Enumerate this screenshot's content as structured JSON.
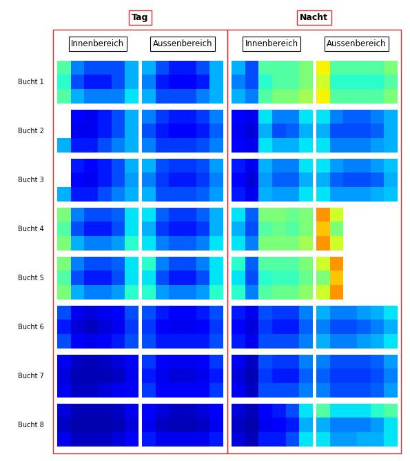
{
  "chart_data": {
    "type": "heatmap",
    "groups": [
      "Tag",
      "Nacht"
    ],
    "areas": [
      "Innenbereich",
      "Aussenbereich"
    ],
    "rows": [
      "Bucht 1",
      "Bucht 2",
      "Bucht 3",
      "Bucht 4",
      "Bucht 5",
      "Bucht 6",
      "Bucht 7",
      "Bucht 8"
    ],
    "color_range": [
      0,
      1
    ],
    "tick_labels": false,
    "cells": [
      [
        [
          [
            0.45,
            0.25,
            0.2,
            0.2,
            0.2,
            0.3
          ],
          [
            0.4,
            0.2,
            0.15,
            0.15,
            0.2,
            0.3
          ],
          [
            0.45,
            0.3,
            0.25,
            0.25,
            0.25,
            0.35
          ]
        ],
        [
          [
            0.3,
            0.2,
            0.15,
            0.15,
            0.2,
            0.3
          ],
          [
            0.25,
            0.15,
            0.12,
            0.12,
            0.15,
            0.3
          ],
          [
            0.3,
            0.2,
            0.2,
            0.2,
            0.25,
            0.3
          ]
        ],
        [
          [
            0.3,
            0.2,
            0.45,
            0.45,
            0.45,
            0.5
          ],
          [
            0.25,
            0.2,
            0.4,
            0.45,
            0.45,
            0.5
          ],
          [
            0.3,
            0.25,
            0.45,
            0.5,
            0.5,
            0.55
          ]
        ],
        [
          [
            0.65,
            0.45,
            0.45,
            0.45,
            0.45,
            0.5
          ],
          [
            0.6,
            0.4,
            0.4,
            0.4,
            0.4,
            0.45
          ],
          [
            0.65,
            0.45,
            0.45,
            0.45,
            0.45,
            0.5
          ]
        ]
      ],
      [
        [
          [
            null,
            0.12,
            0.1,
            0.15,
            0.2,
            0.3
          ],
          [
            null,
            0.1,
            0.1,
            0.15,
            0.2,
            0.3
          ],
          [
            0.3,
            0.15,
            0.15,
            0.2,
            0.25,
            0.3
          ]
        ],
        [
          [
            0.25,
            0.18,
            0.15,
            0.15,
            0.18,
            0.25
          ],
          [
            0.2,
            0.15,
            0.12,
            0.12,
            0.15,
            0.22
          ],
          [
            0.25,
            0.18,
            0.18,
            0.18,
            0.2,
            0.25
          ]
        ],
        [
          [
            0.12,
            0.1,
            0.35,
            0.25,
            0.25,
            0.35
          ],
          [
            0.1,
            0.08,
            0.3,
            0.2,
            0.22,
            0.3
          ],
          [
            0.12,
            0.1,
            0.35,
            0.3,
            0.3,
            0.35
          ]
        ],
        [
          [
            0.35,
            0.25,
            0.22,
            0.22,
            0.25,
            0.3
          ],
          [
            0.3,
            0.2,
            0.2,
            0.2,
            0.22,
            0.3
          ],
          [
            0.35,
            0.25,
            0.25,
            0.25,
            0.28,
            0.3
          ]
        ]
      ],
      [
        [
          [
            null,
            0.15,
            0.12,
            0.15,
            0.2,
            0.3
          ],
          [
            null,
            0.12,
            0.1,
            0.15,
            0.2,
            0.28
          ],
          [
            0.3,
            0.15,
            0.15,
            0.2,
            0.25,
            0.3
          ]
        ],
        [
          [
            0.3,
            0.2,
            0.18,
            0.18,
            0.2,
            0.28
          ],
          [
            0.25,
            0.18,
            0.15,
            0.15,
            0.18,
            0.25
          ],
          [
            0.3,
            0.2,
            0.2,
            0.2,
            0.22,
            0.28
          ]
        ],
        [
          [
            0.15,
            0.1,
            0.3,
            0.25,
            0.25,
            0.35
          ],
          [
            0.12,
            0.08,
            0.28,
            0.22,
            0.22,
            0.3
          ],
          [
            0.15,
            0.1,
            0.3,
            0.28,
            0.28,
            0.35
          ]
        ],
        [
          [
            0.35,
            0.28,
            0.25,
            0.25,
            0.28,
            0.32
          ],
          [
            0.3,
            0.22,
            0.2,
            0.2,
            0.22,
            0.3
          ],
          [
            0.35,
            0.28,
            0.28,
            0.28,
            0.3,
            0.32
          ]
        ]
      ],
      [
        [
          [
            0.5,
            0.25,
            0.2,
            0.2,
            0.22,
            0.35
          ],
          [
            0.45,
            0.2,
            0.15,
            0.15,
            0.2,
            0.35
          ],
          [
            0.5,
            0.3,
            0.25,
            0.25,
            0.28,
            0.4
          ]
        ],
        [
          [
            0.35,
            0.22,
            0.18,
            0.18,
            0.22,
            0.3
          ],
          [
            0.3,
            0.18,
            0.15,
            0.15,
            0.18,
            0.3
          ],
          [
            0.35,
            0.25,
            0.22,
            0.22,
            0.25,
            0.35
          ]
        ],
        [
          [
            0.35,
            0.22,
            0.5,
            0.5,
            0.48,
            0.5
          ],
          [
            0.3,
            0.2,
            0.45,
            0.48,
            0.45,
            0.5
          ],
          [
            0.35,
            0.25,
            0.5,
            0.5,
            0.5,
            0.55
          ]
        ],
        [
          [
            0.75,
            0.6,
            null,
            null,
            null,
            null
          ],
          [
            0.7,
            0.5,
            null,
            null,
            null,
            null
          ],
          [
            0.75,
            0.6,
            null,
            null,
            null,
            null
          ]
        ]
      ],
      [
        [
          [
            0.5,
            0.25,
            0.2,
            0.2,
            0.22,
            0.35
          ],
          [
            0.45,
            0.2,
            0.15,
            0.15,
            0.2,
            0.35
          ],
          [
            0.5,
            0.3,
            0.25,
            0.25,
            0.28,
            0.4
          ]
        ],
        [
          [
            0.4,
            0.25,
            0.2,
            0.2,
            0.25,
            0.35
          ],
          [
            0.35,
            0.2,
            0.15,
            0.15,
            0.2,
            0.35
          ],
          [
            0.4,
            0.28,
            0.25,
            0.25,
            0.28,
            0.4
          ]
        ],
        [
          [
            0.4,
            0.22,
            0.45,
            0.45,
            0.45,
            0.5
          ],
          [
            0.35,
            0.2,
            0.4,
            0.42,
            0.42,
            0.48
          ],
          [
            0.4,
            0.25,
            0.45,
            0.48,
            0.48,
            0.52
          ]
        ],
        [
          [
            0.6,
            0.75,
            null,
            null,
            null,
            null
          ],
          [
            0.5,
            0.7,
            null,
            null,
            null,
            null
          ],
          [
            0.6,
            0.75,
            null,
            null,
            null,
            null
          ]
        ]
      ],
      [
        [
          [
            0.2,
            0.1,
            0.08,
            0.1,
            0.12,
            0.2
          ],
          [
            0.15,
            0.08,
            0.06,
            0.08,
            0.1,
            0.18
          ],
          [
            0.2,
            0.12,
            0.1,
            0.12,
            0.15,
            0.2
          ]
        ],
        [
          [
            0.2,
            0.15,
            0.12,
            0.12,
            0.15,
            0.2
          ],
          [
            0.18,
            0.12,
            0.1,
            0.1,
            0.12,
            0.18
          ],
          [
            0.2,
            0.15,
            0.15,
            0.15,
            0.15,
            0.2
          ]
        ],
        [
          [
            0.15,
            0.1,
            0.2,
            0.18,
            0.18,
            0.25
          ],
          [
            0.12,
            0.08,
            0.18,
            0.15,
            0.15,
            0.22
          ],
          [
            0.15,
            0.1,
            0.2,
            0.2,
            0.2,
            0.25
          ]
        ],
        [
          [
            0.3,
            0.25,
            0.25,
            0.28,
            0.3,
            0.35
          ],
          [
            0.25,
            0.2,
            0.2,
            0.22,
            0.25,
            0.3
          ],
          [
            0.3,
            0.25,
            0.25,
            0.28,
            0.3,
            0.35
          ]
        ]
      ],
      [
        [
          [
            0.1,
            0.06,
            0.05,
            0.06,
            0.08,
            0.12
          ],
          [
            0.08,
            0.05,
            0.05,
            0.05,
            0.06,
            0.1
          ],
          [
            0.1,
            0.06,
            0.06,
            0.08,
            0.1,
            0.12
          ]
        ],
        [
          [
            0.18,
            0.12,
            0.1,
            0.1,
            0.12,
            0.18
          ],
          [
            0.15,
            0.1,
            0.08,
            0.08,
            0.1,
            0.15
          ],
          [
            0.18,
            0.12,
            0.12,
            0.12,
            0.12,
            0.18
          ]
        ],
        [
          [
            0.1,
            0.06,
            0.2,
            0.18,
            0.18,
            0.25
          ],
          [
            0.08,
            0.05,
            0.18,
            0.15,
            0.15,
            0.22
          ],
          [
            0.1,
            0.06,
            0.2,
            0.2,
            0.2,
            0.25
          ]
        ],
        [
          [
            0.25,
            0.2,
            0.2,
            0.2,
            0.22,
            0.28
          ],
          [
            0.22,
            0.18,
            0.18,
            0.18,
            0.2,
            0.25
          ],
          [
            0.25,
            0.2,
            0.2,
            0.2,
            0.22,
            0.28
          ]
        ]
      ],
      [
        [
          [
            0.08,
            0.05,
            0.05,
            0.05,
            0.06,
            0.1
          ],
          [
            0.06,
            0.04,
            0.04,
            0.04,
            0.05,
            0.08
          ],
          [
            0.1,
            0.06,
            0.06,
            0.06,
            0.08,
            0.12
          ]
        ],
        [
          [
            0.12,
            0.08,
            0.06,
            0.06,
            0.08,
            0.12
          ],
          [
            0.1,
            0.06,
            0.05,
            0.05,
            0.06,
            0.1
          ],
          [
            0.15,
            0.1,
            0.1,
            0.1,
            0.1,
            0.15
          ]
        ],
        [
          [
            0.08,
            0.05,
            0.12,
            0.15,
            0.2,
            0.35
          ],
          [
            0.06,
            0.04,
            0.1,
            0.12,
            0.15,
            0.3
          ],
          [
            0.08,
            0.05,
            0.15,
            0.15,
            0.2,
            0.35
          ]
        ],
        [
          [
            0.45,
            0.35,
            0.35,
            0.35,
            0.4,
            0.45
          ],
          [
            0.3,
            0.25,
            0.25,
            0.25,
            0.28,
            0.35
          ],
          [
            0.35,
            0.28,
            0.28,
            0.3,
            0.3,
            0.35
          ]
        ]
      ]
    ]
  }
}
